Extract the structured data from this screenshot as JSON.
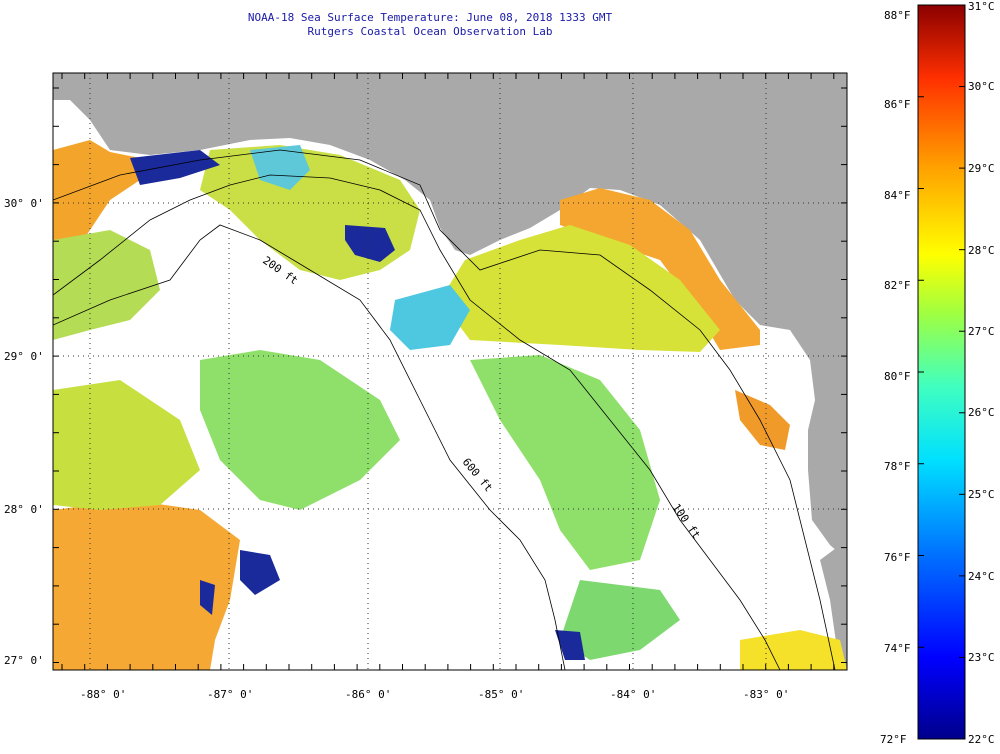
{
  "header": {
    "title": "NOAA-18 Sea Surface Temperature:  June 08, 2018 1333 GMT",
    "subtitle": "Rutgers Coastal Ocean Observation Lab"
  },
  "map": {
    "latitude_labels": [
      "30° 0'",
      "29° 0'",
      "28° 0'",
      "27° 0'"
    ],
    "longitude_labels": [
      "-88° 0'",
      "-87° 0'",
      "-86° 0'",
      "-85° 0'",
      "-84° 0'",
      "-83° 0'"
    ],
    "isobath_labels": [
      "200 ft",
      "600 ft",
      "100 ft"
    ],
    "colors": {
      "land": "#a9a9a9",
      "no_data": "#ffffff",
      "warm_sst": "#f7a21f",
      "mid_sst": "#c8e23a",
      "cool_sst": "#3cc8e8",
      "cold_sst": "#1020a0"
    }
  },
  "colorbar": {
    "fahrenheit_labels": [
      "88°F",
      "86°F",
      "84°F",
      "82°F",
      "80°F",
      "78°F",
      "76°F",
      "74°F",
      "72°F"
    ],
    "celsius_labels": [
      "31°C",
      "30°C",
      "29°C",
      "28°C",
      "27°C",
      "26°C",
      "25°C",
      "24°C",
      "23°C",
      "22°C"
    ],
    "min_f": 72,
    "max_f": 88,
    "min_c": 22,
    "max_c": 31,
    "colormap": [
      "#00008b",
      "#0000ff",
      "#0070ff",
      "#00e0ff",
      "#40ffc0",
      "#a0ff40",
      "#ffff00",
      "#ffa000",
      "#ff3000",
      "#8b0000"
    ]
  }
}
